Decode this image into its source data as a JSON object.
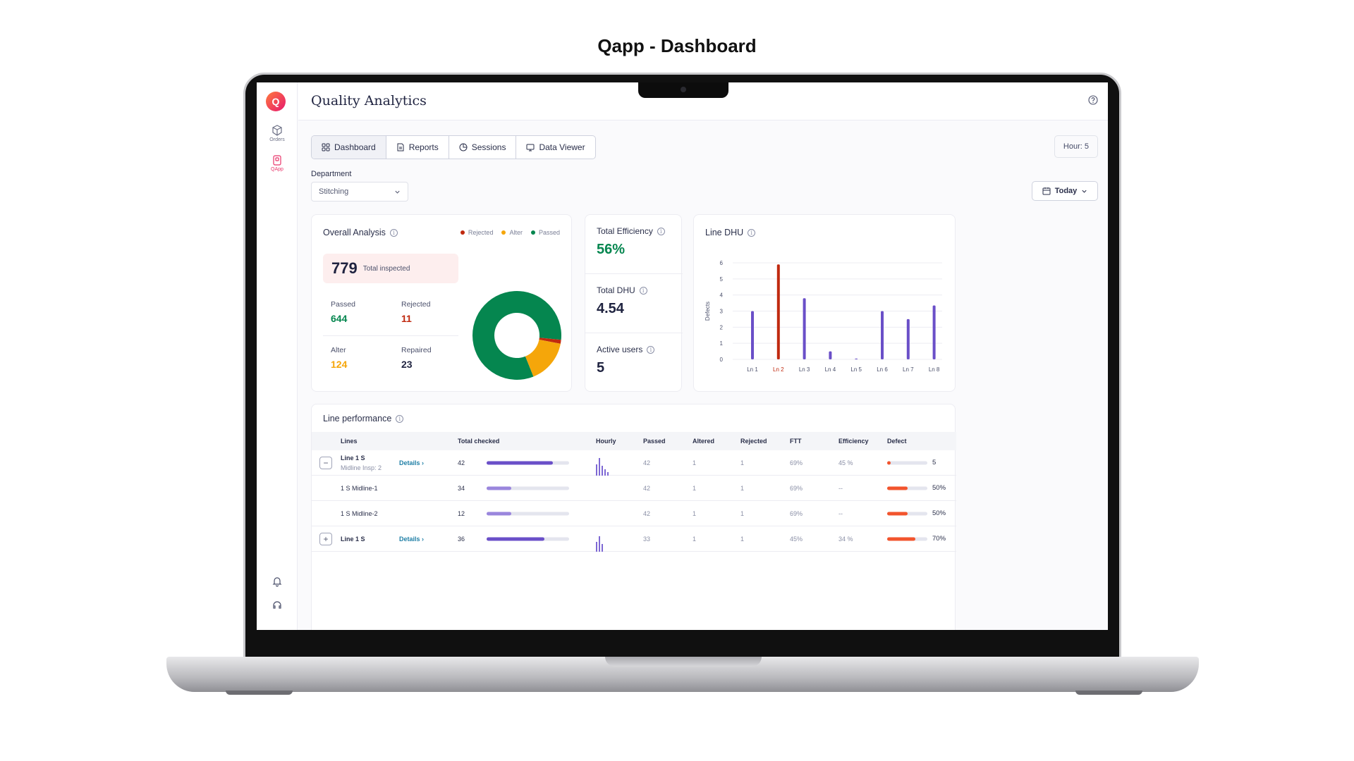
{
  "page_title": "Qapp - Dashboard",
  "app": {
    "title": "Quality Analytics",
    "logo_glyph": "Q",
    "sidebar": [
      {
        "name": "orders",
        "label": "Orders",
        "icon": "box-icon"
      },
      {
        "name": "qapp",
        "label": "QApp",
        "icon": "clipboard-icon",
        "active": true
      }
    ],
    "tabs": [
      {
        "label": "Dashboard",
        "icon": "grid-icon",
        "active": true
      },
      {
        "label": "Reports",
        "icon": "document-icon"
      },
      {
        "label": "Sessions",
        "icon": "pie-icon"
      },
      {
        "label": "Data Viewer",
        "icon": "monitor-icon"
      }
    ],
    "hour_chip": "Hour: 5",
    "department_label": "Department",
    "department_value": "Stitching",
    "date_filter": "Today"
  },
  "overall": {
    "title": "Overall Analysis",
    "legend": [
      {
        "label": "Rejected",
        "color": "#c0290f"
      },
      {
        "label": "Alter",
        "color": "#f5a60a"
      },
      {
        "label": "Passed",
        "color": "#05864f"
      }
    ],
    "total_value": "779",
    "total_label": "Total inspected",
    "passed_label": "Passed",
    "passed_value": "644",
    "rejected_label": "Rejected",
    "rejected_value": "11",
    "alter_label": "Alter",
    "alter_value": "124",
    "repaired_label": "Repaired",
    "repaired_value": "23"
  },
  "donut": [
    {
      "label": "Passed",
      "value": 644,
      "color": "#05864f"
    },
    {
      "label": "Rejected",
      "value": 11,
      "color": "#c0290f"
    },
    {
      "label": "Alter",
      "value": 124,
      "color": "#f5a60a"
    }
  ],
  "metrics": {
    "efficiency_label": "Total Efficiency",
    "efficiency_value": "56%",
    "dhu_label": "Total DHU",
    "dhu_value": "4.54",
    "users_label": "Active users",
    "users_value": "5"
  },
  "chart_data": {
    "type": "bar",
    "title": "Line DHU",
    "ylabel": "Defects",
    "xlabel": "",
    "categories": [
      "Ln 1",
      "Ln 2",
      "Ln 3",
      "Ln 4",
      "Ln 5",
      "Ln 6",
      "Ln 7",
      "Ln 8"
    ],
    "values": [
      3.0,
      5.9,
      3.8,
      0.5,
      0.05,
      3.0,
      2.5,
      3.35
    ],
    "highlight_index": 1,
    "colors": {
      "default": "#6a4fc8",
      "highlight": "#c0290f"
    },
    "ylim": [
      0,
      6
    ],
    "yticks": [
      "0",
      "1",
      "2",
      "3",
      "4",
      "5",
      "6"
    ]
  },
  "line_performance": {
    "title": "Line performance",
    "headers": {
      "lines": "Lines",
      "total": "Total checked",
      "hourly": "Hourly",
      "passed": "Passed",
      "altered": "Altered",
      "rejected": "Rejected",
      "ftt": "FTT",
      "efficiency": "Efficiency",
      "defect": "Defect"
    },
    "rows": [
      {
        "toggle": "−",
        "line": "Line 1 S",
        "sub": "Midline Insp: 2",
        "details": "Details ›",
        "total": "42",
        "total_fraction": 0.8,
        "hourly": [
          0.45,
          0.7,
          0.4,
          0.25,
          0.15
        ],
        "passed": "42",
        "altered": "1",
        "rejected": "1",
        "ftt": "69%",
        "efficiency": "45 %",
        "defect_fraction": 0.08,
        "defect": "5"
      },
      {
        "toggle": "",
        "line": "1 S Midline-1",
        "sub": "",
        "details": "",
        "total": "34",
        "total_fraction": 0.3,
        "hourly": [],
        "passed": "42",
        "altered": "1",
        "rejected": "1",
        "ftt": "69%",
        "efficiency": "--",
        "defect_fraction": 0.5,
        "defect": "50%"
      },
      {
        "toggle": "",
        "line": "1 S Midline-2",
        "sub": "",
        "details": "",
        "total": "12",
        "total_fraction": 0.3,
        "hourly": [],
        "passed": "42",
        "altered": "1",
        "rejected": "1",
        "ftt": "69%",
        "efficiency": "--",
        "defect_fraction": 0.5,
        "defect": "50%"
      },
      {
        "toggle": "+",
        "line": "Line 1 S",
        "sub": "",
        "details": "Details ›",
        "total": "36",
        "total_fraction": 0.7,
        "hourly": [
          0.4,
          0.6,
          0.3
        ],
        "passed": "33",
        "altered": "1",
        "rejected": "1",
        "ftt": "45%",
        "efficiency": "34 %",
        "defect_fraction": 0.7,
        "defect": "70%"
      }
    ]
  }
}
